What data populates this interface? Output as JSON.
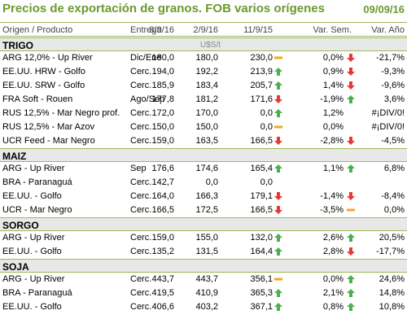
{
  "title": "Precios de exportación de granos. FOB varios orígenes",
  "date": "09/09/16",
  "headers": {
    "product": "Origen / Producto",
    "delivery": "Entrega",
    "d1": "8/9/16",
    "d2": "2/9/16",
    "d3": "11/9/15",
    "var_week": "Var. Sem.",
    "var_year": "Var. Año"
  },
  "unit": "U$S/t",
  "sections": [
    {
      "name": "TRIGO",
      "rows": [
        {
          "product": "ARG 12,0% - Up River",
          "delivery": "Dic/Ene",
          "d1": "180,0",
          "d2": "180,0",
          "d3": "230,0",
          "week": "0,0%",
          "week_icon": "flat-dash-icon",
          "year": "-21,7%",
          "year_icon": "down-arrow-icon"
        },
        {
          "product": "EE.UU. HRW - Golfo",
          "delivery": "Cerc.",
          "d1": "194,0",
          "d2": "192,2",
          "d3": "213,9",
          "week": "0,9%",
          "week_icon": "up-arrow-icon",
          "year": "-9,3%",
          "year_icon": "down-arrow-icon"
        },
        {
          "product": "EE.UU. SRW - Golfo",
          "delivery": "Cerc.",
          "d1": "185,9",
          "d2": "183,4",
          "d3": "205,7",
          "week": "1,4%",
          "week_icon": "up-arrow-icon",
          "year": "-9,6%",
          "year_icon": "down-arrow-icon"
        },
        {
          "product": "FRA Soft - Rouen",
          "delivery": "Ago/Sep",
          "d1": "177,8",
          "d2": "181,2",
          "d3": "171,6",
          "week": "-1,9%",
          "week_icon": "down-arrow-icon",
          "year": "3,6%",
          "year_icon": "up-arrow-icon"
        },
        {
          "product": "RUS 12,5% - Mar Negro prof.",
          "delivery": "Cerc.",
          "d1": "172,0",
          "d2": "170,0",
          "d3": "0,0",
          "week": "1,2%",
          "week_icon": "up-arrow-icon",
          "year": "#¡DIV/0!",
          "year_icon": ""
        },
        {
          "product": "RUS 12,5% - Mar Azov",
          "delivery": "Cerc.",
          "d1": "150,0",
          "d2": "150,0",
          "d3": "0,0",
          "week": "0,0%",
          "week_icon": "flat-dash-icon",
          "year": "#¡DIV/0!",
          "year_icon": ""
        },
        {
          "product": "UCR Feed - Mar Negro",
          "delivery": "Cerc.",
          "d1": "159,0",
          "d2": "163,5",
          "d3": "166,5",
          "week": "-2,8%",
          "week_icon": "down-arrow-icon",
          "year": "-4,5%",
          "year_icon": "down-arrow-icon"
        }
      ]
    },
    {
      "name": "MAIZ",
      "rows": [
        {
          "product": "ARG - Up River",
          "delivery": "Sep",
          "d1": "176,6",
          "d2": "174,6",
          "d3": "165,4",
          "week": "1,1%",
          "week_icon": "up-arrow-icon",
          "year": "6,8%",
          "year_icon": "up-arrow-icon"
        },
        {
          "product": "BRA - Paranaguá",
          "delivery": "Cerc.",
          "d1": "142,7",
          "d2": "0,0",
          "d3": "0,0",
          "week": "",
          "week_icon": "",
          "year": "",
          "year_icon": ""
        },
        {
          "product": "EE.UU. - Golfo",
          "delivery": "Cerc.",
          "d1": "164,0",
          "d2": "166,3",
          "d3": "179,1",
          "week": "-1,4%",
          "week_icon": "down-arrow-icon",
          "year": "-8,4%",
          "year_icon": "down-arrow-icon"
        },
        {
          "product": "UCR - Mar Negro",
          "delivery": "Cerc.",
          "d1": "166,5",
          "d2": "172,5",
          "d3": "166,5",
          "week": "-3,5%",
          "week_icon": "down-arrow-icon",
          "year": "0,0%",
          "year_icon": "flat-dash-icon"
        }
      ]
    },
    {
      "name": "SORGO",
      "rows": [
        {
          "product": "ARG - Up River",
          "delivery": "Cerc.",
          "d1": "159,0",
          "d2": "155,0",
          "d3": "132,0",
          "week": "2,6%",
          "week_icon": "up-arrow-icon",
          "year": "20,5%",
          "year_icon": "up-arrow-icon"
        },
        {
          "product": "EE.UU. - Golfo",
          "delivery": "Cerc.",
          "d1": "135,2",
          "d2": "131,5",
          "d3": "164,4",
          "week": "2,8%",
          "week_icon": "up-arrow-icon",
          "year": "-17,7%",
          "year_icon": "down-arrow-icon"
        }
      ]
    },
    {
      "name": "SOJA",
      "rows": [
        {
          "product": "ARG - Up River",
          "delivery": "Cerc.",
          "d1": "443,7",
          "d2": "443,7",
          "d3": "356,1",
          "week": "0,0%",
          "week_icon": "flat-dash-icon",
          "year": "24,6%",
          "year_icon": "up-arrow-icon"
        },
        {
          "product": "BRA - Paranaguá",
          "delivery": "Cerc.",
          "d1": "419,5",
          "d2": "410,9",
          "d3": "365,3",
          "week": "2,1%",
          "week_icon": "up-arrow-icon",
          "year": "14,8%",
          "year_icon": "up-arrow-icon"
        },
        {
          "product": "EE.UU. - Golfo",
          "delivery": "Cerc.",
          "d1": "406,6",
          "d2": "403,2",
          "d3": "367,1",
          "week": "0,8%",
          "week_icon": "up-arrow-icon",
          "year": "10,8%",
          "year_icon": "up-arrow-icon"
        }
      ]
    }
  ],
  "colors": {
    "accent": "#6a9a2e",
    "rule": "#9bbb59",
    "section_bg": "#e8e8e8",
    "up": "#4caf50",
    "down": "#e53935",
    "flat": "#f5a623"
  }
}
